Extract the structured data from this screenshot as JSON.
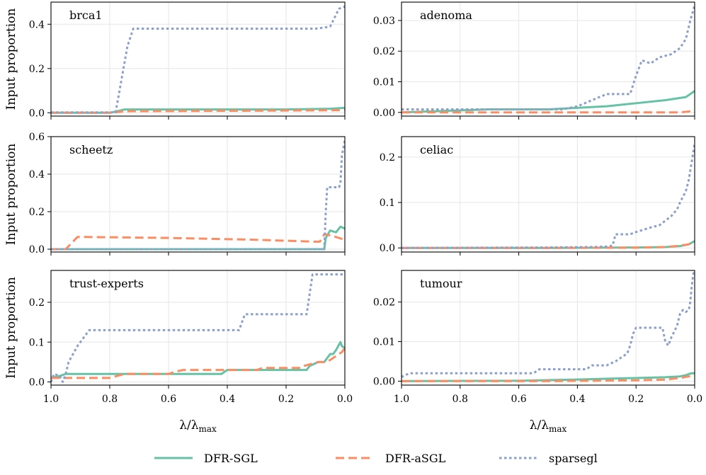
{
  "chart_data": {
    "type": "line",
    "xlabel": "λ/λmax",
    "xlabel_main": "λ/λ",
    "xlabel_sub": "max",
    "ylabel": "Input proportion",
    "xlim": [
      1.0,
      0.0
    ],
    "xticks": [
      1.0,
      0.8,
      0.6,
      0.4,
      0.2,
      0.0
    ],
    "xtick_labels": [
      "1.0",
      "0.8",
      "0.6",
      "0.4",
      "0.2",
      "0.0"
    ],
    "grid": true,
    "legend": {
      "position": "bottom-center",
      "entries": [
        {
          "name": "DFR-SGL",
          "style": "solid",
          "color": "#66c2a5"
        },
        {
          "name": "DFR-aSGL",
          "style": "dashed",
          "color": "#fc8d62"
        },
        {
          "name": "sparsegl",
          "style": "dotted",
          "color": "#8da0cb"
        }
      ]
    },
    "panels": [
      {
        "title": "brca1",
        "ylim": [
          -0.015,
          0.5
        ],
        "yticks": [
          0.0,
          0.2,
          0.4
        ],
        "ytick_labels": [
          "0.0",
          "0.2",
          "0.4"
        ],
        "series": [
          {
            "name": "DFR-SGL",
            "x": [
              1.0,
              0.8,
              0.78,
              0.75,
              0.5,
              0.2,
              0.05,
              0.0
            ],
            "y": [
              0.0,
              0.0,
              0.005,
              0.015,
              0.015,
              0.015,
              0.018,
              0.022
            ]
          },
          {
            "name": "DFR-aSGL",
            "x": [
              1.0,
              0.8,
              0.78,
              0.75,
              0.55,
              0.2,
              0.0
            ],
            "y": [
              0.0,
              0.0,
              0.002,
              0.007,
              0.008,
              0.01,
              0.012
            ]
          },
          {
            "name": "sparsegl",
            "x": [
              1.0,
              0.78,
              0.76,
              0.74,
              0.72,
              0.1,
              0.07,
              0.05,
              0.02,
              0.0
            ],
            "y": [
              0.002,
              0.002,
              0.15,
              0.3,
              0.38,
              0.38,
              0.385,
              0.39,
              0.47,
              0.48
            ]
          }
        ]
      },
      {
        "title": "adenoma",
        "ylim": [
          -0.0012,
          0.036
        ],
        "yticks": [
          0.0,
          0.01,
          0.02,
          0.03
        ],
        "ytick_labels": [
          "0.00",
          "0.01",
          "0.02",
          "0.03"
        ],
        "series": [
          {
            "name": "DFR-SGL",
            "x": [
              1.0,
              0.85,
              0.7,
              0.5,
              0.3,
              0.2,
              0.1,
              0.03,
              0.0
            ],
            "y": [
              0.0,
              0.0005,
              0.001,
              0.001,
              0.002,
              0.003,
              0.004,
              0.005,
              0.007
            ]
          },
          {
            "name": "DFR-aSGL",
            "x": [
              1.0,
              0.5,
              0.2,
              0.05,
              0.02,
              0.0
            ],
            "y": [
              0.0,
              0.0,
              0.0,
              0.0,
              0.0003,
              0.0006
            ]
          },
          {
            "name": "sparsegl",
            "x": [
              1.0,
              0.6,
              0.45,
              0.4,
              0.35,
              0.3,
              0.22,
              0.2,
              0.18,
              0.15,
              0.12,
              0.08,
              0.05,
              0.03,
              0.015,
              0.0
            ],
            "y": [
              0.001,
              0.001,
              0.001,
              0.002,
              0.004,
              0.006,
              0.006,
              0.012,
              0.017,
              0.016,
              0.018,
              0.019,
              0.021,
              0.024,
              0.03,
              0.035
            ]
          }
        ]
      },
      {
        "title": "scheetz",
        "ylim": [
          -0.015,
          0.6
        ],
        "yticks": [
          0.0,
          0.2,
          0.4,
          0.6
        ],
        "ytick_labels": [
          "0.0",
          "0.2",
          "0.4",
          "0.6"
        ],
        "series": [
          {
            "name": "DFR-SGL",
            "x": [
              1.0,
              0.1,
              0.07,
              0.065,
              0.05,
              0.03,
              0.015,
              0.0
            ],
            "y": [
              0.0,
              0.0,
              0.0,
              0.06,
              0.1,
              0.09,
              0.12,
              0.11
            ]
          },
          {
            "name": "DFR-aSGL",
            "x": [
              1.0,
              0.95,
              0.91,
              0.88,
              0.6,
              0.3,
              0.1,
              0.085,
              0.07,
              0.04,
              0.02,
              0.0
            ],
            "y": [
              0.0,
              0.0,
              0.065,
              0.065,
              0.06,
              0.05,
              0.04,
              0.04,
              0.08,
              0.07,
              0.06,
              0.05
            ]
          },
          {
            "name": "sparsegl",
            "x": [
              1.0,
              0.07,
              0.065,
              0.06,
              0.02,
              0.015,
              0.01,
              0.0
            ],
            "y": [
              0.0,
              0.0,
              0.2,
              0.33,
              0.33,
              0.35,
              0.5,
              0.58
            ]
          }
        ]
      },
      {
        "title": "celiac",
        "ylim": [
          -0.009,
          0.245
        ],
        "yticks": [
          0.0,
          0.1,
          0.2
        ],
        "ytick_labels": [
          "0.0",
          "0.1",
          "0.2"
        ],
        "series": [
          {
            "name": "DFR-SGL",
            "x": [
              1.0,
              0.5,
              0.2,
              0.1,
              0.05,
              0.02,
              0.0
            ],
            "y": [
              0.0,
              0.0,
              0.001,
              0.002,
              0.004,
              0.008,
              0.015
            ]
          },
          {
            "name": "DFR-aSGL",
            "x": [
              1.0,
              0.5,
              0.2,
              0.1,
              0.05,
              0.02,
              0.0
            ],
            "y": [
              0.0,
              0.0,
              0.0005,
              0.002,
              0.005,
              0.008,
              0.012
            ]
          },
          {
            "name": "sparsegl",
            "x": [
              1.0,
              0.5,
              0.35,
              0.3,
              0.28,
              0.27,
              0.22,
              0.2,
              0.15,
              0.12,
              0.1,
              0.08,
              0.06,
              0.05,
              0.03,
              0.02,
              0.01,
              0.0
            ],
            "y": [
              0.0,
              0.001,
              0.002,
              0.003,
              0.005,
              0.03,
              0.03,
              0.035,
              0.045,
              0.05,
              0.06,
              0.07,
              0.085,
              0.1,
              0.125,
              0.15,
              0.19,
              0.23
            ]
          }
        ]
      },
      {
        "title": "trust-experts",
        "ylim": [
          -0.008,
          0.28
        ],
        "yticks": [
          0.0,
          0.1,
          0.2
        ],
        "ytick_labels": [
          "0.0",
          "0.1",
          "0.2"
        ],
        "series": [
          {
            "name": "DFR-SGL",
            "x": [
              1.0,
              0.97,
              0.95,
              0.42,
              0.4,
              0.13,
              0.12,
              0.09,
              0.07,
              0.06,
              0.05,
              0.04,
              0.03,
              0.015,
              0.01,
              0.0
            ],
            "y": [
              0.01,
              0.015,
              0.02,
              0.02,
              0.03,
              0.03,
              0.04,
              0.05,
              0.05,
              0.06,
              0.07,
              0.07,
              0.08,
              0.1,
              0.09,
              0.085
            ]
          },
          {
            "name": "DFR-aSGL",
            "x": [
              1.0,
              0.8,
              0.75,
              0.6,
              0.58,
              0.55,
              0.3,
              0.28,
              0.15,
              0.14,
              0.09,
              0.07,
              0.05,
              0.03,
              0.01,
              0.0
            ],
            "y": [
              0.01,
              0.01,
              0.02,
              0.02,
              0.025,
              0.03,
              0.03,
              0.035,
              0.035,
              0.04,
              0.05,
              0.05,
              0.055,
              0.065,
              0.075,
              0.085
            ]
          },
          {
            "name": "sparsegl",
            "x": [
              1.0,
              0.99,
              0.97,
              0.96,
              0.95,
              0.94,
              0.91,
              0.88,
              0.87,
              0.36,
              0.35,
              0.34,
              0.13,
              0.12,
              0.11,
              0.0
            ],
            "y": [
              0.0,
              0.02,
              0.015,
              0.0,
              0.02,
              0.05,
              0.09,
              0.12,
              0.13,
              0.13,
              0.15,
              0.17,
              0.17,
              0.22,
              0.27,
              0.27
            ]
          }
        ]
      },
      {
        "title": "tumour",
        "ylim": [
          -0.001,
          0.028
        ],
        "yticks": [
          0.0,
          0.01,
          0.02
        ],
        "ytick_labels": [
          "0.00",
          "0.01",
          "0.02"
        ],
        "series": [
          {
            "name": "DFR-SGL",
            "x": [
              1.0,
              0.6,
              0.4,
              0.3,
              0.2,
              0.1,
              0.05,
              0.03,
              0.02,
              0.01,
              0.0
            ],
            "y": [
              0.0,
              0.0001,
              0.0004,
              0.0006,
              0.0008,
              0.001,
              0.0012,
              0.0015,
              0.0018,
              0.002,
              0.002
            ]
          },
          {
            "name": "DFR-aSGL",
            "x": [
              1.0,
              0.5,
              0.2,
              0.1,
              0.05,
              0.02,
              0.0
            ],
            "y": [
              0.0,
              0.0,
              0.0002,
              0.0004,
              0.0008,
              0.0012,
              0.0016
            ]
          },
          {
            "name": "sparsegl",
            "x": [
              1.0,
              0.99,
              0.97,
              0.55,
              0.53,
              0.37,
              0.35,
              0.3,
              0.27,
              0.25,
              0.23,
              0.22,
              0.21,
              0.2,
              0.15,
              0.11,
              0.1,
              0.09,
              0.08,
              0.06,
              0.05,
              0.04,
              0.03,
              0.02,
              0.015,
              0.01,
              0.005,
              0.0
            ],
            "y": [
              0.001,
              0.0015,
              0.002,
              0.002,
              0.003,
              0.003,
              0.004,
              0.004,
              0.005,
              0.006,
              0.007,
              0.009,
              0.012,
              0.0135,
              0.0135,
              0.0135,
              0.01,
              0.009,
              0.011,
              0.014,
              0.017,
              0.018,
              0.0175,
              0.018,
              0.02,
              0.024,
              0.027,
              0.028
            ]
          }
        ]
      }
    ]
  }
}
